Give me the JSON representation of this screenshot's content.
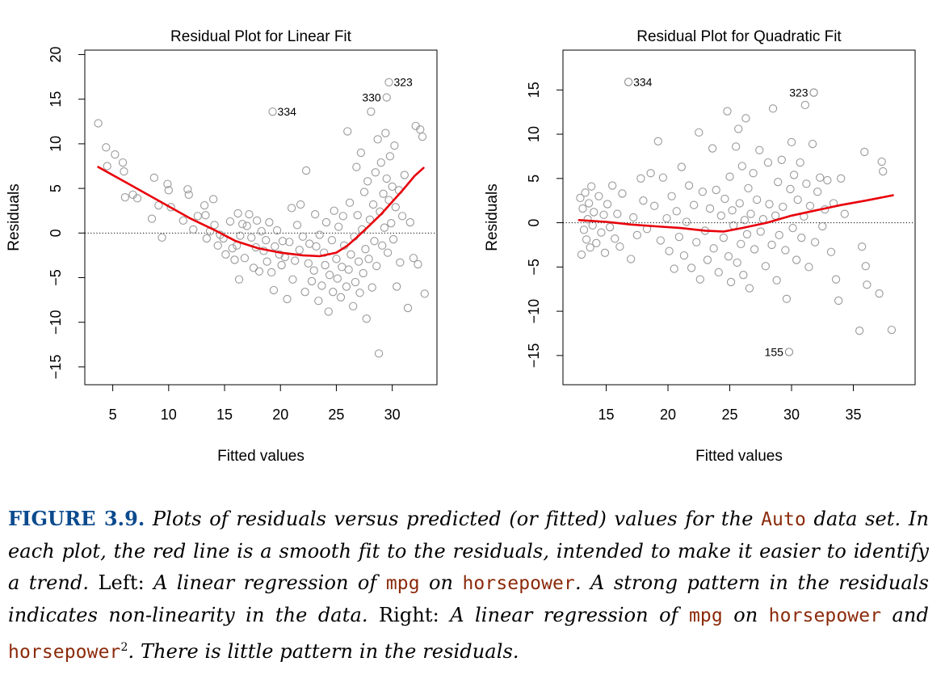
{
  "chart_data": [
    {
      "type": "scatter",
      "title": "Residual Plot for Linear Fit",
      "xlabel": "Fitted values",
      "ylabel": "Residuals",
      "xlim": [
        2.5,
        34
      ],
      "ylim": [
        -17,
        20.5
      ],
      "xticks": [
        5,
        10,
        15,
        20,
        25,
        30
      ],
      "yticks": [
        -15,
        -10,
        -5,
        0,
        5,
        10,
        15,
        20
      ],
      "grid": false,
      "reference_line": {
        "y": 0,
        "style": "dotted"
      },
      "smooth_line": {
        "x": [
          3.7,
          6,
          8,
          10,
          12,
          14,
          16,
          18,
          20,
          22,
          23.5,
          25,
          26,
          27,
          28,
          29,
          30,
          31,
          32,
          32.8
        ],
        "y": [
          7.4,
          5.8,
          4.4,
          3.0,
          1.6,
          0.4,
          -0.9,
          -1.7,
          -2.2,
          -2.5,
          -2.6,
          -2.2,
          -1.4,
          -0.3,
          0.9,
          2.1,
          3.5,
          4.9,
          6.4,
          7.3
        ]
      },
      "labeled_points": [
        {
          "label": "334",
          "x": 19.3,
          "y": 13.6
        },
        {
          "label": "323",
          "x": 29.7,
          "y": 16.9
        },
        {
          "label": "330",
          "x": 29.5,
          "y": 15.2
        }
      ],
      "points": [
        [
          3.7,
          12.3
        ],
        [
          4.4,
          9.6
        ],
        [
          4.5,
          7.5
        ],
        [
          5.2,
          8.8
        ],
        [
          5.9,
          7.9
        ],
        [
          6.0,
          6.9
        ],
        [
          6.1,
          4.0
        ],
        [
          6.8,
          4.3
        ],
        [
          7.2,
          3.9
        ],
        [
          8.5,
          1.6
        ],
        [
          8.7,
          6.2
        ],
        [
          9.1,
          3.1
        ],
        [
          9.4,
          -0.5
        ],
        [
          9.9,
          5.5
        ],
        [
          10.0,
          4.8
        ],
        [
          10.2,
          2.9
        ],
        [
          11.3,
          1.4
        ],
        [
          11.7,
          4.9
        ],
        [
          11.8,
          4.3
        ],
        [
          12.2,
          0.4
        ],
        [
          12.6,
          1.9
        ],
        [
          13.2,
          3.1
        ],
        [
          13.3,
          2.0
        ],
        [
          13.4,
          -0.6
        ],
        [
          13.7,
          0.2
        ],
        [
          14.0,
          3.8
        ],
        [
          14.1,
          0.9
        ],
        [
          14.4,
          -1.4
        ],
        [
          14.6,
          -0.2
        ],
        [
          14.9,
          -0.6
        ],
        [
          15.1,
          -2.4
        ],
        [
          15.5,
          1.3
        ],
        [
          15.7,
          -1.7
        ],
        [
          15.9,
          -3.0
        ],
        [
          16.1,
          -1.4
        ],
        [
          16.2,
          2.2
        ],
        [
          16.3,
          -5.2
        ],
        [
          16.4,
          -0.3
        ],
        [
          16.6,
          1.0
        ],
        [
          16.8,
          -2.8
        ],
        [
          17.0,
          0.8
        ],
        [
          17.2,
          2.1
        ],
        [
          17.4,
          -0.5
        ],
        [
          17.6,
          -3.9
        ],
        [
          17.8,
          -1.6
        ],
        [
          17.9,
          1.4
        ],
        [
          18.1,
          -4.3
        ],
        [
          18.3,
          0.2
        ],
        [
          18.5,
          -2.0
        ],
        [
          18.7,
          -0.8
        ],
        [
          18.8,
          -3.2
        ],
        [
          19.0,
          1.2
        ],
        [
          19.2,
          -4.4
        ],
        [
          19.4,
          -6.4
        ],
        [
          19.5,
          -1.5
        ],
        [
          19.7,
          0.3
        ],
        [
          19.9,
          -2.4
        ],
        [
          20.1,
          -3.6
        ],
        [
          20.2,
          -0.9
        ],
        [
          20.4,
          -2.7
        ],
        [
          20.6,
          -7.4
        ],
        [
          20.8,
          -1.0
        ],
        [
          21.0,
          2.8
        ],
        [
          21.1,
          -5.2
        ],
        [
          21.3,
          -3.1
        ],
        [
          21.5,
          0.9
        ],
        [
          21.7,
          -1.9
        ],
        [
          21.8,
          3.2
        ],
        [
          22.0,
          -0.4
        ],
        [
          22.2,
          -6.6
        ],
        [
          22.3,
          7.0
        ],
        [
          22.5,
          -3.4
        ],
        [
          22.6,
          -1.2
        ],
        [
          22.8,
          -5.4
        ],
        [
          23.0,
          -4.2
        ],
        [
          23.1,
          2.1
        ],
        [
          23.2,
          -1.5
        ],
        [
          23.4,
          -7.6
        ],
        [
          23.5,
          -0.2
        ],
        [
          23.7,
          -5.9
        ],
        [
          23.9,
          -2.2
        ],
        [
          24.0,
          -3.6
        ],
        [
          24.1,
          1.2
        ],
        [
          24.3,
          -8.8
        ],
        [
          24.4,
          -4.7
        ],
        [
          24.6,
          -0.8
        ],
        [
          24.7,
          -6.6
        ],
        [
          24.8,
          2.5
        ],
        [
          25.0,
          -2.9
        ],
        [
          25.1,
          -5.1
        ],
        [
          25.2,
          0.7
        ],
        [
          25.4,
          -7.2
        ],
        [
          25.5,
          -3.8
        ],
        [
          25.6,
          1.9
        ],
        [
          25.7,
          -1.4
        ],
        [
          25.9,
          -6.0
        ],
        [
          26.0,
          11.4
        ],
        [
          26.1,
          -4.1
        ],
        [
          26.2,
          3.4
        ],
        [
          26.3,
          -2.4
        ],
        [
          26.5,
          -8.2
        ],
        [
          26.6,
          -0.4
        ],
        [
          26.7,
          -5.5
        ],
        [
          26.8,
          7.4
        ],
        [
          26.9,
          2.0
        ],
        [
          27.0,
          -3.2
        ],
        [
          27.1,
          -6.7
        ],
        [
          27.2,
          9.0
        ],
        [
          27.3,
          0.4
        ],
        [
          27.4,
          -4.5
        ],
        [
          27.5,
          4.6
        ],
        [
          27.6,
          -1.8
        ],
        [
          27.7,
          -9.6
        ],
        [
          27.8,
          5.8
        ],
        [
          27.9,
          -2.9
        ],
        [
          28.0,
          1.5
        ],
        [
          28.1,
          13.6
        ],
        [
          28.2,
          -6.1
        ],
        [
          28.3,
          3.2
        ],
        [
          28.4,
          -0.9
        ],
        [
          28.5,
          6.8
        ],
        [
          28.6,
          -3.7
        ],
        [
          28.7,
          10.5
        ],
        [
          28.8,
          -13.5
        ],
        [
          28.9,
          2.4
        ],
        [
          29.0,
          7.9
        ],
        [
          29.1,
          -1.4
        ],
        [
          29.2,
          4.4
        ],
        [
          29.3,
          0.6
        ],
        [
          29.4,
          11.2
        ],
        [
          29.5,
          6.1
        ],
        [
          29.6,
          -2.2
        ],
        [
          29.7,
          3.7
        ],
        [
          29.8,
          8.6
        ],
        [
          29.9,
          1.1
        ],
        [
          30.0,
          5.2
        ],
        [
          30.1,
          -0.7
        ],
        [
          30.2,
          9.8
        ],
        [
          30.3,
          2.9
        ],
        [
          30.4,
          -6.0
        ],
        [
          30.6,
          4.8
        ],
        [
          30.7,
          -3.3
        ],
        [
          30.9,
          1.9
        ],
        [
          31.1,
          6.5
        ],
        [
          31.4,
          -8.4
        ],
        [
          31.6,
          1.2
        ],
        [
          31.9,
          -2.8
        ],
        [
          32.1,
          12.0
        ],
        [
          32.3,
          -3.5
        ],
        [
          32.5,
          11.6
        ],
        [
          32.7,
          10.8
        ],
        [
          32.9,
          -6.8
        ]
      ]
    },
    {
      "type": "scatter",
      "title": "Residual Plot for Quadratic Fit",
      "xlabel": "Fitted values",
      "ylabel": "Residuals",
      "xlim": [
        11.5,
        40
      ],
      "ylim": [
        -18.3,
        19.5
      ],
      "xticks": [
        15,
        20,
        25,
        30,
        35
      ],
      "yticks": [
        -15,
        -10,
        -5,
        0,
        5,
        10,
        15
      ],
      "grid": false,
      "reference_line": {
        "y": 0,
        "style": "dotted"
      },
      "smooth_line": {
        "x": [
          12.8,
          15,
          17,
          19,
          21,
          23,
          24.5,
          26,
          28,
          30,
          32,
          34,
          36,
          38.2
        ],
        "y": [
          0.3,
          0.1,
          -0.2,
          -0.4,
          -0.6,
          -0.9,
          -1.0,
          -0.6,
          0.0,
          0.8,
          1.4,
          2.0,
          2.5,
          3.1
        ]
      },
      "labeled_points": [
        {
          "label": "334",
          "x": 16.8,
          "y": 15.9
        },
        {
          "label": "323",
          "x": 31.8,
          "y": 14.7
        },
        {
          "label": "155",
          "x": 29.8,
          "y": -14.6
        }
      ],
      "points": [
        [
          12.9,
          2.8
        ],
        [
          13.0,
          -3.6
        ],
        [
          13.1,
          1.6
        ],
        [
          13.2,
          -0.8
        ],
        [
          13.3,
          3.4
        ],
        [
          13.4,
          -1.9
        ],
        [
          13.5,
          0.4
        ],
        [
          13.6,
          2.2
        ],
        [
          13.7,
          -2.8
        ],
        [
          13.8,
          4.1
        ],
        [
          13.9,
          -0.3
        ],
        [
          14.0,
          1.2
        ],
        [
          14.2,
          -2.3
        ],
        [
          14.4,
          3.0
        ],
        [
          14.6,
          -1.1
        ],
        [
          14.8,
          0.9
        ],
        [
          14.9,
          -3.4
        ],
        [
          15.1,
          2.1
        ],
        [
          15.3,
          -0.5
        ],
        [
          15.5,
          4.2
        ],
        [
          15.7,
          -1.8
        ],
        [
          15.9,
          1.0
        ],
        [
          16.1,
          -2.7
        ],
        [
          16.3,
          3.3
        ],
        [
          16.8,
          15.9
        ],
        [
          17.0,
          -4.1
        ],
        [
          17.2,
          0.6
        ],
        [
          17.5,
          -1.4
        ],
        [
          17.8,
          5.0
        ],
        [
          18.0,
          2.5
        ],
        [
          18.3,
          -0.7
        ],
        [
          18.6,
          5.6
        ],
        [
          18.9,
          1.9
        ],
        [
          19.2,
          9.2
        ],
        [
          19.4,
          -2.0
        ],
        [
          19.6,
          5.1
        ],
        [
          19.9,
          0.5
        ],
        [
          20.1,
          -3.2
        ],
        [
          20.3,
          3.0
        ],
        [
          20.5,
          -5.2
        ],
        [
          20.7,
          1.3
        ],
        [
          20.9,
          -1.6
        ],
        [
          21.1,
          6.3
        ],
        [
          21.3,
          -3.7
        ],
        [
          21.5,
          0.1
        ],
        [
          21.7,
          4.2
        ],
        [
          21.9,
          -5.1
        ],
        [
          22.1,
          2.0
        ],
        [
          22.3,
          -2.2
        ],
        [
          22.5,
          10.2
        ],
        [
          22.6,
          -6.4
        ],
        [
          22.8,
          3.5
        ],
        [
          23.0,
          -0.9
        ],
        [
          23.2,
          -4.2
        ],
        [
          23.4,
          1.6
        ],
        [
          23.6,
          8.4
        ],
        [
          23.7,
          -2.9
        ],
        [
          23.9,
          3.7
        ],
        [
          24.1,
          -5.6
        ],
        [
          24.3,
          0.8
        ],
        [
          24.5,
          -1.7
        ],
        [
          24.6,
          2.7
        ],
        [
          24.8,
          12.6
        ],
        [
          24.9,
          -3.8
        ],
        [
          25.0,
          5.2
        ],
        [
          25.1,
          -6.7
        ],
        [
          25.2,
          1.4
        ],
        [
          25.3,
          -0.3
        ],
        [
          25.5,
          8.6
        ],
        [
          25.6,
          -4.5
        ],
        [
          25.7,
          10.6
        ],
        [
          25.8,
          2.2
        ],
        [
          25.9,
          -2.4
        ],
        [
          26.0,
          6.4
        ],
        [
          26.1,
          -5.9
        ],
        [
          26.2,
          0.3
        ],
        [
          26.3,
          11.8
        ],
        [
          26.4,
          -1.3
        ],
        [
          26.5,
          3.9
        ],
        [
          26.6,
          -7.4
        ],
        [
          26.7,
          1.0
        ],
        [
          26.9,
          5.6
        ],
        [
          27.0,
          -3.0
        ],
        [
          27.2,
          2.6
        ],
        [
          27.4,
          8.2
        ],
        [
          27.5,
          -1.0
        ],
        [
          27.7,
          0.4
        ],
        [
          27.9,
          -4.9
        ],
        [
          28.1,
          6.8
        ],
        [
          28.2,
          2.1
        ],
        [
          28.4,
          -2.5
        ],
        [
          28.5,
          12.9
        ],
        [
          28.7,
          0.8
        ],
        [
          28.8,
          -6.5
        ],
        [
          28.9,
          4.6
        ],
        [
          29.0,
          -1.4
        ],
        [
          29.2,
          7.1
        ],
        [
          29.3,
          1.8
        ],
        [
          29.5,
          -3.1
        ],
        [
          29.6,
          -8.6
        ],
        [
          29.8,
          -14.6
        ],
        [
          29.9,
          3.8
        ],
        [
          30.0,
          9.1
        ],
        [
          30.1,
          -0.6
        ],
        [
          30.2,
          5.4
        ],
        [
          30.4,
          -4.2
        ],
        [
          30.5,
          2.6
        ],
        [
          30.7,
          6.8
        ],
        [
          30.8,
          -1.7
        ],
        [
          31.0,
          0.7
        ],
        [
          31.1,
          13.3
        ],
        [
          31.2,
          4.4
        ],
        [
          31.4,
          -5.0
        ],
        [
          31.5,
          1.9
        ],
        [
          31.7,
          8.9
        ],
        [
          31.8,
          14.7
        ],
        [
          31.9,
          -2.2
        ],
        [
          32.1,
          3.5
        ],
        [
          32.3,
          5.1
        ],
        [
          32.5,
          -0.4
        ],
        [
          32.7,
          1.5
        ],
        [
          32.9,
          4.8
        ],
        [
          33.2,
          -3.3
        ],
        [
          33.4,
          2.2
        ],
        [
          33.6,
          -6.4
        ],
        [
          33.8,
          -8.8
        ],
        [
          34.0,
          5.0
        ],
        [
          34.3,
          1.0
        ],
        [
          35.5,
          -12.2
        ],
        [
          35.7,
          -2.7
        ],
        [
          35.9,
          8.0
        ],
        [
          36.0,
          -4.9
        ],
        [
          36.1,
          -7.0
        ],
        [
          37.1,
          -8.0
        ],
        [
          37.3,
          6.9
        ],
        [
          37.4,
          5.8
        ],
        [
          38.1,
          -12.1
        ]
      ]
    }
  ],
  "caption": {
    "figure_label": "FIGURE 3.9.",
    "text1": " Plots of residuals versus predicted (or fitted) values for the ",
    "code_auto": "Auto",
    "text2": " data set. In each plot, the red line is a smooth fit to the residuals, intended to make it easier to identify a trend.",
    "left_label": " Left:",
    "text3": " A linear regression of ",
    "code_mpg1": "mpg",
    "text4": " on ",
    "code_hp1": "horsepower",
    "text5": ". A strong pattern in the residuals indicates non-linearity in the data.",
    "right_label": " Right:",
    "text6": " A linear regression of ",
    "code_mpg2": "mpg",
    "text7": " on ",
    "code_hp2": "horsepower",
    "text8": " and ",
    "code_hp3": "horsepower",
    "sup": "2",
    "text9": ". There is little pattern in the residuals."
  },
  "colors": {
    "points": "#9a9a9a",
    "smooth": "#e8000b",
    "figure_label": "#0b4a8e",
    "code": "#8b2a0a"
  }
}
